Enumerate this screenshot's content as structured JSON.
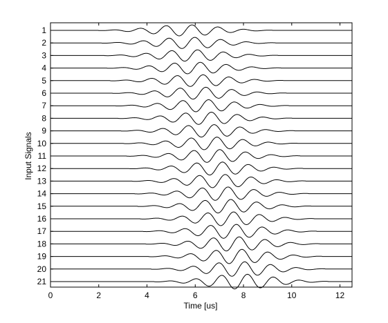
{
  "chart_data": {
    "type": "line",
    "title": "",
    "xlabel": "Time [us]",
    "ylabel": "Input Signals",
    "xlim": [
      0,
      12.5
    ],
    "xticks": [
      "0",
      "2",
      "4",
      "6",
      "8",
      "10",
      "12"
    ],
    "xtick_values": [
      0,
      2,
      4,
      6,
      8,
      10,
      12
    ],
    "categories": [
      "1",
      "2",
      "3",
      "4",
      "5",
      "6",
      "7",
      "8",
      "9",
      "10",
      "11",
      "12",
      "13",
      "14",
      "15",
      "16",
      "17",
      "18",
      "19",
      "20",
      "21"
    ],
    "grid": false,
    "legend": "none",
    "line_color": "#000000",
    "signal": {
      "description_only": false,
      "center_start_us": 5.6,
      "center_step_us": 0.115,
      "period_us": 1.08,
      "envelope_sigma_us": 1.35,
      "amplitude_first": 0.45,
      "amplitude_last": 0.6,
      "window_halfwidth_us": 3.6
    }
  }
}
